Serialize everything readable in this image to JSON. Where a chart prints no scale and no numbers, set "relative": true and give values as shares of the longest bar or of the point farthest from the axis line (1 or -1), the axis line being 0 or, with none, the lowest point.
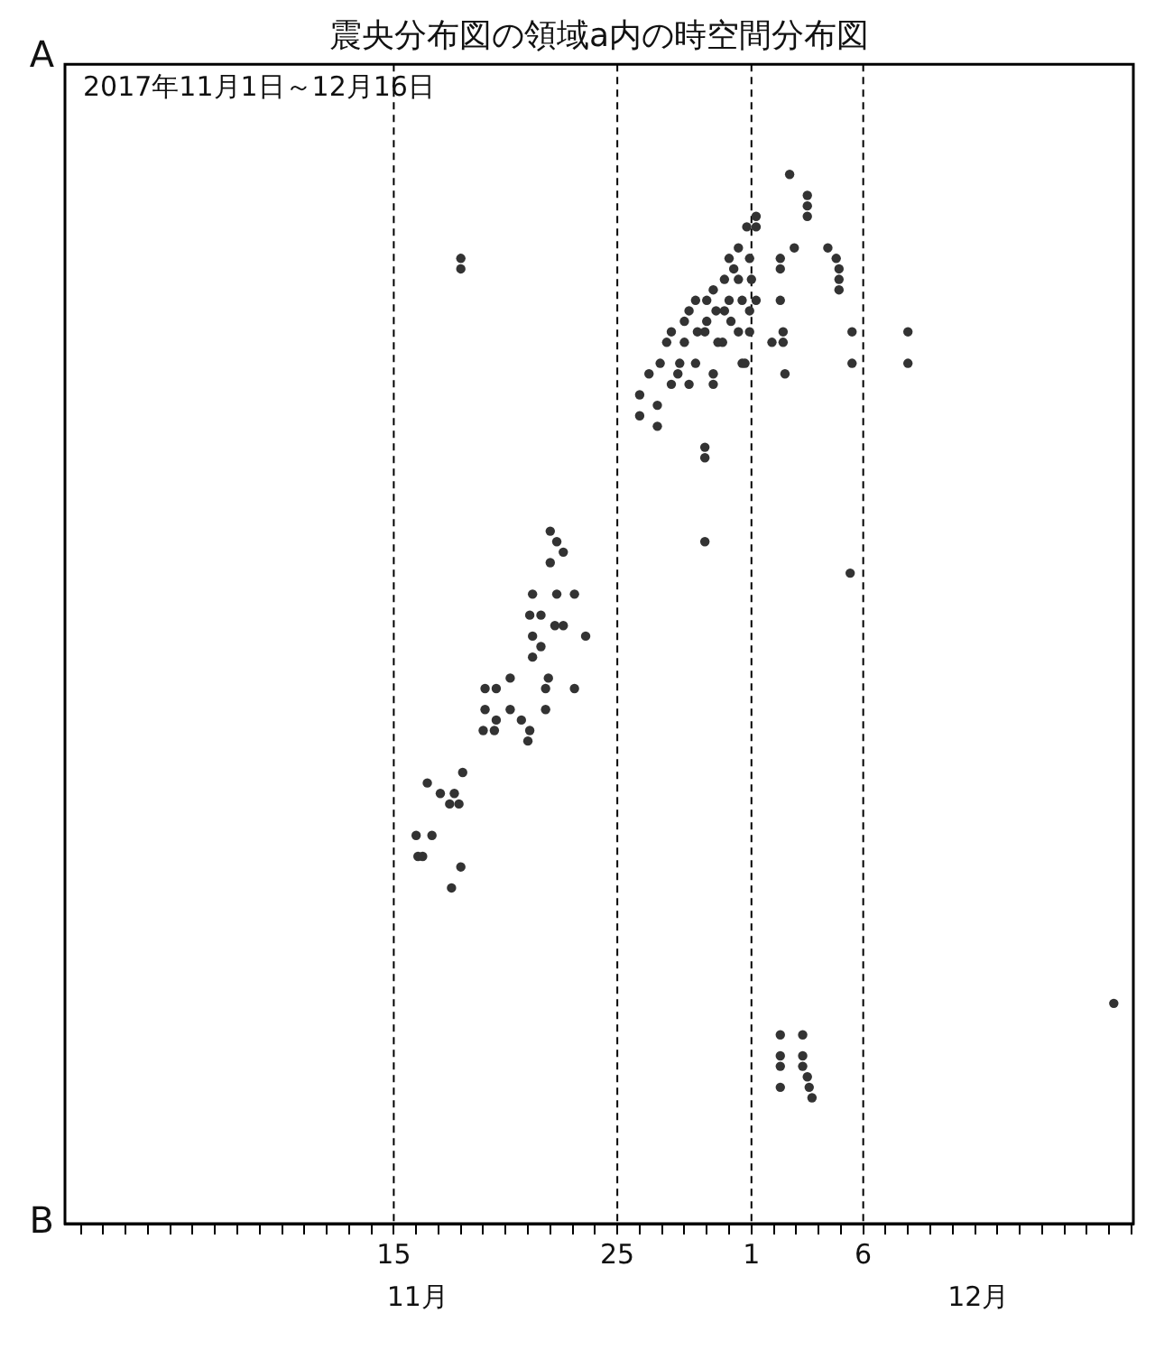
{
  "chart_data": {
    "type": "scatter",
    "title": "震央分布図の領域a内の時空間分布図",
    "subtitle": "2017年11月1日～12月16日",
    "relative": true,
    "x": [
      "2017-11-18",
      "2017-11-18",
      "2017-11-22",
      "2017-11-22T07:00",
      "2017-11-22T14:00",
      "2017-11-22",
      "2017-11-21T05:00",
      "2017-11-22T07:00",
      "2017-11-23T02:00",
      "2017-11-21T02:00",
      "2017-11-21T14:00",
      "2017-11-22T05:00",
      "2017-11-22T14:00",
      "2017-11-23T14:00",
      "2017-11-21T05:00",
      "2017-11-21T14:00",
      "2017-11-21T05:00",
      "2017-11-19T02:00",
      "2017-11-19T14:00",
      "2017-11-20T05:00",
      "2017-11-19T02:00",
      "2017-11-19T14:00",
      "2017-11-20T05:00",
      "2017-11-19",
      "2017-11-19T12:00",
      "2017-11-20T17:00",
      "2017-11-21T02:00",
      "2017-11-21",
      "2017-11-21T19:00",
      "2017-11-21T19:00",
      "2017-11-21T22:00",
      "2017-11-23T02:00",
      "2017-11-18T02:00",
      "2017-11-16T12:00",
      "2017-11-17T02:00",
      "2017-11-17T17:00",
      "2017-11-17T12:00",
      "2017-11-17T22:00",
      "2017-11-16",
      "2017-11-16T17:00",
      "2017-11-16T02:00",
      "2017-11-16T07:00",
      "2017-11-18",
      "2017-11-17T14:00",
      "2017-12-02T17:00",
      "2017-12-03T12:00",
      "2017-12-03T12:00",
      "2017-12-03T12:00",
      "2017-12-02T22:00",
      "2017-12-01T05:00",
      "2017-12-01T05:00",
      "2017-11-30T19:00",
      "2017-11-30T10:00",
      "2017-11-30T22:00",
      "2017-11-30",
      "2017-12-04T10:00",
      "2017-12-04T19:00",
      "2017-12-04T22:00",
      "2017-12-04T22:00",
      "2017-12-04T22:00",
      "2017-12-02T07:00",
      "2017-12-02T07:00",
      "2017-12-02T07:00",
      "2017-11-29T19:00",
      "2017-11-30T10:00",
      "2017-11-29T07:00",
      "2017-11-30T14:00",
      "2017-11-29",
      "2017-11-30",
      "2017-11-28T12:00",
      "2017-11-30T22:00",
      "2017-11-29T10:00",
      "2017-11-28T05:00",
      "2017-11-28T22:00",
      "2017-11-30T10:00",
      "2017-11-27T10:00",
      "2017-11-30T22:00",
      "2017-11-29T17:00",
      "2017-11-28",
      "2017-11-27T05:00",
      "2017-11-28T12:00",
      "2017-11-30T14:00",
      "2017-11-26T22:00",
      "2017-11-27T17:00",
      "2017-11-26T10:00",
      "2017-11-29T07:00",
      "2017-11-28T05:00",
      "2017-11-27T10:00",
      "2017-11-30T17:00",
      "2017-11-29T07:00",
      "2017-11-28",
      "2017-11-29",
      "2017-11-29T19:00",
      "2017-11-30T05:00",
      "2017-12-01",
      "2017-11-28T14:00",
      "2017-11-29T12:00",
      "2017-11-27T19:00",
      "2017-11-30T02:00",
      "2017-12-01T05:00",
      "2017-12-02T10:00",
      "2017-12-02T10:00",
      "2017-12-02T12:00",
      "2017-12-01T22:00",
      "2017-12-05T12:00",
      "2017-12-05T12:00",
      "2017-11-26",
      "2017-11-26T19:00",
      "2017-11-26",
      "2017-11-26T19:00",
      "2017-11-28T22:00",
      "2017-11-28T22:00",
      "2017-11-28T22:00",
      "2017-12-05T10:00",
      "2017-12-08",
      "2017-12-08",
      "2017-12-02T07:00",
      "2017-12-02T07:00",
      "2017-12-02T07:00",
      "2017-12-02T07:00",
      "2017-12-03T07:00",
      "2017-12-03T07:00",
      "2017-12-03T07:00",
      "2017-12-03T12:00",
      "2017-12-03T14:00",
      "2017-12-03T17:00",
      "2017-12-17T05:00"
    ],
    "values": [
      0.92,
      0.91,
      0.66,
      0.65,
      0.64,
      0.63,
      0.6,
      0.6,
      0.6,
      0.58,
      0.58,
      0.57,
      0.57,
      0.56,
      0.56,
      0.55,
      0.54,
      0.51,
      0.51,
      0.52,
      0.49,
      0.48,
      0.49,
      0.47,
      0.47,
      0.48,
      0.47,
      0.46,
      0.51,
      0.49,
      0.52,
      0.51,
      0.43,
      0.42,
      0.41,
      0.41,
      0.4,
      0.4,
      0.37,
      0.37,
      0.35,
      0.35,
      0.34,
      0.32,
      1,
      0.98,
      0.97,
      0.96,
      0.93,
      0.96,
      0.95,
      0.95,
      0.93,
      0.92,
      0.92,
      0.93,
      0.92,
      0.91,
      0.9,
      0.89,
      0.92,
      0.91,
      0.88,
      0.9,
      0.9,
      0.89,
      0.88,
      0.88,
      0.88,
      0.88,
      0.87,
      0.87,
      0.87,
      0.85,
      0.85,
      0.85,
      0.85,
      0.84,
      0.84,
      0.84,
      0.82,
      0.82,
      0.82,
      0.81,
      0.81,
      0.81,
      0.8,
      0.8,
      0.82,
      0.8,
      0.86,
      0.86,
      0.87,
      0.91,
      0.9,
      0.85,
      0.84,
      0.82,
      0.86,
      0.88,
      0.85,
      0.84,
      0.81,
      0.84,
      0.85,
      0.82,
      0.79,
      0.78,
      0.77,
      0.76,
      0.74,
      0.73,
      0.65,
      0.62,
      0.85,
      0.82,
      0.18,
      0.16,
      0.15,
      0.13,
      0.18,
      0.16,
      0.15,
      0.14,
      0.13,
      0.12,
      0.21
    ],
    "color": "#333333",
    "marker": "circle",
    "xlim": [
      "2017-10-31T07:00",
      "2017-12-18T02:00"
    ],
    "xticks": [
      {
        "value": "2017-11-01",
        "label": null
      },
      {
        "value": "2017-11-02",
        "label": null
      },
      {
        "value": "2017-11-03",
        "label": null
      },
      {
        "value": "2017-11-04",
        "label": null
      },
      {
        "value": "2017-11-05",
        "label": null
      },
      {
        "value": "2017-11-06",
        "label": null
      },
      {
        "value": "2017-11-07",
        "label": null
      },
      {
        "value": "2017-11-08",
        "label": null
      },
      {
        "value": "2017-11-09",
        "label": null
      },
      {
        "value": "2017-11-10",
        "label": null
      },
      {
        "value": "2017-11-11",
        "label": null
      },
      {
        "value": "2017-11-12",
        "label": null
      },
      {
        "value": "2017-11-13",
        "label": null
      },
      {
        "value": "2017-11-14",
        "label": null
      },
      {
        "value": "2017-11-15",
        "label": "15"
      },
      {
        "value": "2017-11-16",
        "label": null
      },
      {
        "value": "2017-11-17",
        "label": null
      },
      {
        "value": "2017-11-18",
        "label": null
      },
      {
        "value": "2017-11-19",
        "label": null
      },
      {
        "value": "2017-11-20",
        "label": null
      },
      {
        "value": "2017-11-21",
        "label": null
      },
      {
        "value": "2017-11-22",
        "label": null
      },
      {
        "value": "2017-11-23",
        "label": null
      },
      {
        "value": "2017-11-24",
        "label": null
      },
      {
        "value": "2017-11-25",
        "label": "25"
      },
      {
        "value": "2017-11-26",
        "label": null
      },
      {
        "value": "2017-11-27",
        "label": null
      },
      {
        "value": "2017-11-28",
        "label": null
      },
      {
        "value": "2017-11-29",
        "label": null
      },
      {
        "value": "2017-11-30",
        "label": null
      },
      {
        "value": "2017-12-01",
        "label": "1"
      },
      {
        "value": "2017-12-02",
        "label": null
      },
      {
        "value": "2017-12-03",
        "label": null
      },
      {
        "value": "2017-12-04",
        "label": null
      },
      {
        "value": "2017-12-05",
        "label": null
      },
      {
        "value": "2017-12-06",
        "label": "6"
      },
      {
        "value": "2017-12-07",
        "label": null
      },
      {
        "value": "2017-12-08",
        "label": null
      },
      {
        "value": "2017-12-09",
        "label": null
      },
      {
        "value": "2017-12-10",
        "label": null
      },
      {
        "value": "2017-12-11",
        "label": null
      },
      {
        "value": "2017-12-12",
        "label": null
      },
      {
        "value": "2017-12-13",
        "label": null
      },
      {
        "value": "2017-12-14",
        "label": null
      },
      {
        "value": "2017-12-15",
        "label": null
      },
      {
        "value": "2017-12-16",
        "label": null
      },
      {
        "value": "2017-12-17",
        "label": null
      },
      {
        "value": "2017-12-18",
        "label": null
      }
    ],
    "ref_lines": [
      {
        "axis": "x",
        "value": "2017-11-15",
        "color": "#000000",
        "line_style": "dashed"
      },
      {
        "axis": "x",
        "value": "2017-11-25",
        "color": "#000000",
        "line_style": "dashed"
      },
      {
        "axis": "x",
        "value": "2017-12-01",
        "color": "#000000",
        "line_style": "dashed"
      },
      {
        "axis": "x",
        "value": "2017-12-06",
        "color": "#000000",
        "line_style": "dashed"
      }
    ],
    "annotations": [
      "A",
      "B",
      "11月",
      "12月"
    ]
  }
}
